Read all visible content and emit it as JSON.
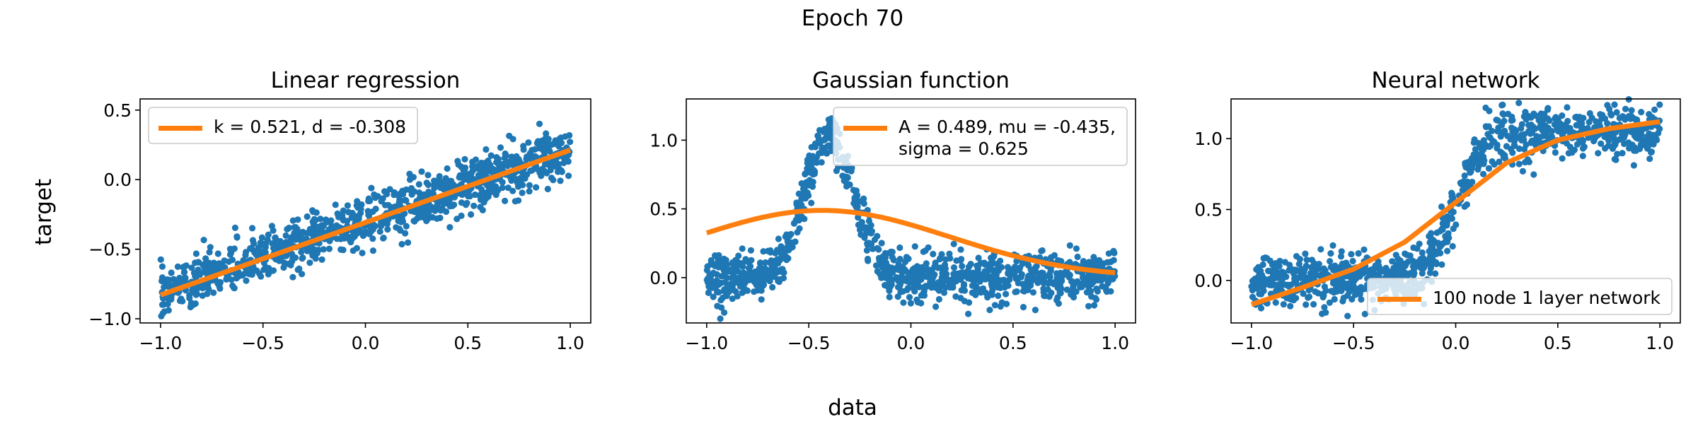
{
  "figure": {
    "suptitle": "Epoch 70",
    "xlabel": "data",
    "ylabel": "target",
    "colors": {
      "scatter": "#1f77b4",
      "fit": "#ff7f0e",
      "axes": "#000000"
    }
  },
  "chart_data": [
    {
      "type": "scatter",
      "title": "Linear regression",
      "xlim": [
        -1.1,
        1.1
      ],
      "ylim": [
        -1.03,
        0.58
      ],
      "xticks": [
        "−1.0",
        "−0.5",
        "0.0",
        "0.5",
        "1.0"
      ],
      "yticks": [
        "−1.0",
        "−0.5",
        "0.0",
        "0.5"
      ],
      "xtick_values": [
        -1.0,
        -0.5,
        0.0,
        0.5,
        1.0
      ],
      "ytick_values": [
        -1.0,
        -0.5,
        0.0,
        0.5
      ],
      "legend": {
        "position": "upper-left",
        "entries": [
          "k = 0.521, d = -0.308"
        ]
      },
      "model": {
        "kind": "linear",
        "k": 0.521,
        "d": -0.308
      },
      "scatter_trend": {
        "kind": "linear",
        "k": 0.52,
        "d": -0.3,
        "noise": 0.09
      },
      "grid": false
    },
    {
      "type": "scatter",
      "title": "Gaussian function",
      "xlim": [
        -1.1,
        1.1
      ],
      "ylim": [
        -0.33,
        1.3
      ],
      "xticks": [
        "−1.0",
        "−0.5",
        "0.0",
        "0.5",
        "1.0"
      ],
      "yticks": [
        "0.0",
        "0.5",
        "1.0"
      ],
      "xtick_values": [
        -1.0,
        -0.5,
        0.0,
        0.5,
        1.0
      ],
      "ytick_values": [
        0.0,
        0.5,
        1.0
      ],
      "legend": {
        "position": "upper-right",
        "entries": [
          "A = 0.489, mu = -0.435,",
          "sigma = 0.625"
        ]
      },
      "model": {
        "kind": "gaussian",
        "A": 0.489,
        "mu": -0.435,
        "sigma": 0.625
      },
      "scatter_trend": {
        "kind": "gaussian",
        "A": 1.0,
        "mu": -0.4,
        "sigma": 0.12,
        "noise": 0.09
      },
      "grid": false
    },
    {
      "type": "scatter",
      "title": "Neural network",
      "xlim": [
        -1.1,
        1.1
      ],
      "ylim": [
        -0.3,
        1.28
      ],
      "xticks": [
        "−1.0",
        "−0.5",
        "0.0",
        "0.5",
        "1.0"
      ],
      "yticks": [
        "0.0",
        "0.5",
        "1.0"
      ],
      "xtick_values": [
        -1.0,
        -0.5,
        0.0,
        0.5,
        1.0
      ],
      "ytick_values": [
        0.0,
        0.5,
        1.0
      ],
      "legend": {
        "position": "lower-right",
        "entries": [
          "100 node 1 layer network"
        ]
      },
      "model": {
        "kind": "curve",
        "x": [
          -1.0,
          -0.75,
          -0.5,
          -0.25,
          0.0,
          0.25,
          0.5,
          0.75,
          1.0
        ],
        "y": [
          -0.17,
          -0.05,
          0.08,
          0.27,
          0.55,
          0.83,
          0.99,
          1.07,
          1.12
        ]
      },
      "scatter_trend": {
        "kind": "sigmoid",
        "low": 0.0,
        "high": 1.05,
        "center": 0.0,
        "scale": 0.07,
        "noise": 0.09
      },
      "grid": false
    }
  ]
}
